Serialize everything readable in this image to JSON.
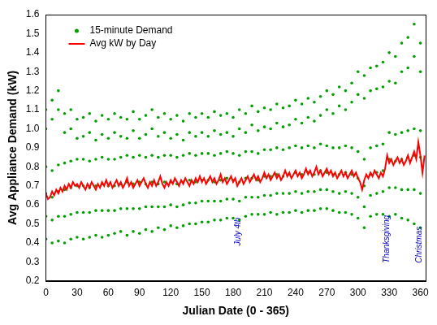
{
  "chart_data": {
    "type": "scatter",
    "x_label": "Julian Date (0 - 365)",
    "y_label": "Avg Appliance Demand (kW)",
    "xlim": [
      0,
      365
    ],
    "xticks": [
      0,
      30,
      60,
      90,
      120,
      150,
      180,
      210,
      240,
      270,
      300,
      330,
      360
    ],
    "ylim": [
      0.2,
      1.6
    ],
    "yticks": [
      0.2,
      0.3,
      0.4,
      0.5,
      0.6,
      0.7,
      0.8,
      0.9,
      {
        "value": 1,
        "label": "1.0"
      },
      1.1,
      1.2,
      1.3,
      1.4,
      1.5,
      1.6
    ],
    "grid": false,
    "legend": "upper left",
    "annotations": [
      {
        "text": "July 4th",
        "x": 185,
        "y": 0.46
      },
      {
        "text": "Thanksgiving",
        "x": 328,
        "y": 0.42
      },
      {
        "text": "Christmas",
        "x": 359,
        "y": 0.39
      }
    ],
    "series": [
      {
        "name": "15-minute Demand",
        "type": "scatter",
        "color": "#00a000",
        "marker": "circle",
        "x": [
          0,
          0,
          0,
          0,
          0,
          0,
          6,
          6,
          6,
          6,
          6,
          6,
          12,
          12,
          12,
          12,
          12,
          12,
          18,
          18,
          18,
          18,
          18,
          18,
          24,
          24,
          24,
          24,
          24,
          24,
          30,
          30,
          30,
          30,
          30,
          30,
          36,
          36,
          36,
          36,
          36,
          36,
          42,
          42,
          42,
          42,
          42,
          42,
          48,
          48,
          48,
          48,
          48,
          48,
          54,
          54,
          54,
          54,
          54,
          54,
          60,
          60,
          60,
          60,
          60,
          60,
          66,
          66,
          66,
          66,
          66,
          66,
          72,
          72,
          72,
          72,
          72,
          72,
          78,
          78,
          78,
          78,
          78,
          78,
          84,
          84,
          84,
          84,
          84,
          84,
          90,
          90,
          90,
          90,
          90,
          90,
          96,
          96,
          96,
          96,
          96,
          96,
          102,
          102,
          102,
          102,
          102,
          102,
          108,
          108,
          108,
          108,
          108,
          108,
          114,
          114,
          114,
          114,
          114,
          114,
          120,
          120,
          120,
          120,
          120,
          120,
          126,
          126,
          126,
          126,
          126,
          126,
          132,
          132,
          132,
          132,
          132,
          132,
          138,
          138,
          138,
          138,
          138,
          138,
          144,
          144,
          144,
          144,
          144,
          144,
          150,
          150,
          150,
          150,
          150,
          150,
          156,
          156,
          156,
          156,
          156,
          156,
          162,
          162,
          162,
          162,
          162,
          162,
          168,
          168,
          168,
          168,
          168,
          168,
          174,
          174,
          174,
          174,
          174,
          174,
          180,
          180,
          180,
          180,
          180,
          180,
          186,
          186,
          186,
          186,
          186,
          186,
          192,
          192,
          192,
          192,
          192,
          192,
          198,
          198,
          198,
          198,
          198,
          198,
          204,
          204,
          204,
          204,
          204,
          204,
          210,
          210,
          210,
          210,
          210,
          210,
          216,
          216,
          216,
          216,
          216,
          216,
          222,
          222,
          222,
          222,
          222,
          222,
          228,
          228,
          228,
          228,
          228,
          228,
          234,
          234,
          234,
          234,
          234,
          234,
          240,
          240,
          240,
          240,
          240,
          240,
          246,
          246,
          246,
          246,
          246,
          246,
          252,
          252,
          252,
          252,
          252,
          252,
          258,
          258,
          258,
          258,
          258,
          258,
          264,
          264,
          264,
          264,
          264,
          264,
          270,
          270,
          270,
          270,
          270,
          270,
          276,
          276,
          276,
          276,
          276,
          276,
          282,
          282,
          282,
          282,
          282,
          282,
          288,
          288,
          288,
          288,
          288,
          288,
          294,
          294,
          294,
          294,
          294,
          294,
          300,
          300,
          300,
          300,
          300,
          300,
          306,
          306,
          306,
          306,
          306,
          306,
          312,
          312,
          312,
          312,
          312,
          312,
          318,
          318,
          318,
          318,
          318,
          318,
          324,
          324,
          324,
          324,
          324,
          324,
          330,
          330,
          330,
          330,
          330,
          330,
          336,
          336,
          336,
          336,
          336,
          336,
          342,
          342,
          342,
          342,
          342,
          342,
          348,
          348,
          348,
          348,
          348,
          348,
          354,
          354,
          354,
          354,
          354,
          354,
          360,
          360,
          360,
          360,
          360,
          360
        ],
        "values": [
          0.42,
          0.54,
          0.66,
          0.8,
          1.0,
          1.1,
          0.4,
          0.52,
          0.64,
          0.78,
          1.05,
          1.15,
          0.41,
          0.54,
          0.67,
          0.81,
          1.1,
          1.2,
          0.4,
          0.54,
          0.68,
          0.82,
          0.98,
          1.08,
          0.42,
          0.55,
          0.69,
          0.83,
          1.0,
          1.1,
          0.43,
          0.56,
          0.7,
          0.84,
          0.95,
          1.05,
          0.42,
          0.56,
          0.7,
          0.84,
          0.96,
          1.06,
          0.43,
          0.56,
          0.69,
          0.83,
          0.98,
          1.08,
          0.44,
          0.57,
          0.7,
          0.84,
          0.94,
          1.04,
          0.43,
          0.57,
          0.71,
          0.85,
          0.97,
          1.07,
          0.44,
          0.57,
          0.7,
          0.84,
          0.95,
          1.05,
          0.45,
          0.57,
          0.7,
          0.84,
          0.98,
          1.08,
          0.46,
          0.58,
          0.71,
          0.85,
          0.96,
          1.06,
          0.44,
          0.58,
          0.72,
          0.86,
          0.95,
          1.05,
          0.46,
          0.58,
          0.71,
          0.85,
          0.99,
          1.09,
          0.45,
          0.58,
          0.72,
          0.86,
          0.95,
          1.05,
          0.47,
          0.59,
          0.71,
          0.85,
          0.97,
          1.07,
          0.46,
          0.59,
          0.72,
          0.86,
          1.0,
          1.1,
          0.48,
          0.59,
          0.71,
          0.85,
          0.96,
          1.06,
          0.47,
          0.59,
          0.72,
          0.86,
          0.98,
          1.08,
          0.49,
          0.6,
          0.72,
          0.86,
          0.95,
          1.05,
          0.48,
          0.59,
          0.71,
          0.85,
          0.97,
          1.07,
          0.49,
          0.6,
          0.72,
          0.86,
          0.94,
          1.04,
          0.5,
          0.61,
          0.73,
          0.87,
          0.98,
          1.08,
          0.5,
          0.61,
          0.72,
          0.86,
          0.96,
          1.06,
          0.51,
          0.62,
          0.73,
          0.87,
          0.98,
          1.08,
          0.51,
          0.62,
          0.73,
          0.87,
          0.96,
          1.06,
          0.52,
          0.62,
          0.72,
          0.86,
          0.99,
          1.09,
          0.52,
          0.62,
          0.73,
          0.87,
          0.97,
          1.07,
          0.53,
          0.63,
          0.74,
          0.88,
          0.98,
          1.08,
          0.53,
          0.63,
          0.73,
          0.87,
          0.96,
          1.06,
          0.52,
          0.62,
          0.72,
          0.86,
          1.0,
          1.1,
          0.54,
          0.64,
          0.74,
          0.88,
          0.98,
          1.08,
          0.55,
          0.64,
          0.74,
          0.88,
          1.02,
          1.12,
          0.55,
          0.64,
          0.73,
          0.87,
          0.99,
          1.09,
          0.55,
          0.65,
          0.75,
          0.89,
          1.01,
          1.11,
          0.56,
          0.65,
          0.75,
          0.89,
          1.0,
          1.1,
          0.55,
          0.66,
          0.76,
          0.9,
          1.03,
          1.13,
          0.56,
          0.66,
          0.75,
          0.89,
          1.01,
          1.11,
          0.56,
          0.66,
          0.76,
          0.9,
          1.02,
          1.12,
          0.57,
          0.67,
          0.77,
          0.91,
          1.05,
          1.15,
          0.56,
          0.66,
          0.76,
          0.9,
          1.03,
          1.13,
          0.57,
          0.67,
          0.77,
          0.91,
          1.06,
          1.16,
          0.57,
          0.67,
          0.76,
          0.9,
          1.04,
          1.14,
          0.58,
          0.68,
          0.78,
          0.92,
          1.07,
          1.17,
          0.58,
          0.68,
          0.77,
          0.91,
          1.1,
          1.2,
          0.57,
          0.67,
          0.76,
          0.9,
          1.08,
          1.18,
          0.56,
          0.66,
          0.76,
          0.9,
          1.12,
          1.22,
          0.56,
          0.67,
          0.77,
          0.91,
          1.1,
          1.2,
          0.55,
          0.66,
          0.76,
          0.9,
          1.14,
          1.24,
          0.53,
          0.64,
          0.74,
          0.88,
          1.18,
          1.3,
          0.48,
          0.59,
          0.7,
          0.84,
          1.16,
          1.28,
          0.54,
          0.65,
          0.76,
          0.9,
          1.2,
          1.32,
          0.55,
          0.66,
          0.77,
          0.91,
          1.21,
          1.33,
          0.55,
          0.67,
          0.78,
          0.92,
          1.22,
          1.35,
          0.54,
          0.69,
          0.84,
          0.98,
          1.25,
          1.4,
          0.55,
          0.69,
          0.83,
          0.97,
          1.24,
          1.38,
          0.53,
          0.68,
          0.84,
          0.98,
          1.3,
          1.45,
          0.52,
          0.68,
          0.85,
          0.99,
          1.32,
          1.48,
          0.5,
          0.68,
          0.86,
          1.0,
          1.38,
          1.55,
          0.48,
          0.66,
          0.85,
          0.99,
          1.3,
          1.45
        ]
      },
      {
        "name": "Avg kW by Day",
        "type": "line",
        "color": "#ff0000",
        "line_style": "solid",
        "x": [
          0,
          2,
          4,
          6,
          8,
          10,
          12,
          14,
          16,
          18,
          20,
          22,
          24,
          26,
          28,
          30,
          32,
          34,
          36,
          38,
          40,
          42,
          44,
          46,
          48,
          50,
          52,
          54,
          56,
          58,
          60,
          62,
          64,
          66,
          68,
          70,
          72,
          74,
          76,
          78,
          80,
          82,
          84,
          86,
          88,
          90,
          92,
          94,
          96,
          98,
          100,
          102,
          104,
          106,
          108,
          110,
          112,
          114,
          116,
          118,
          120,
          122,
          124,
          126,
          128,
          130,
          132,
          134,
          136,
          138,
          140,
          142,
          144,
          146,
          148,
          150,
          152,
          154,
          156,
          158,
          160,
          162,
          164,
          166,
          168,
          170,
          172,
          174,
          176,
          178,
          180,
          182,
          184,
          186,
          188,
          190,
          192,
          194,
          196,
          198,
          200,
          202,
          204,
          206,
          208,
          210,
          212,
          214,
          216,
          218,
          220,
          222,
          224,
          226,
          228,
          230,
          232,
          234,
          236,
          238,
          240,
          242,
          244,
          246,
          248,
          250,
          252,
          254,
          256,
          258,
          260,
          262,
          264,
          266,
          268,
          270,
          272,
          274,
          276,
          278,
          280,
          282,
          284,
          286,
          288,
          290,
          292,
          294,
          296,
          298,
          300,
          302,
          304,
          306,
          308,
          310,
          312,
          314,
          316,
          318,
          320,
          322,
          324,
          326,
          328,
          330,
          332,
          334,
          336,
          338,
          340,
          342,
          344,
          346,
          348,
          350,
          352,
          354,
          356,
          358,
          360,
          362,
          364
        ],
        "values": [
          0.66,
          0.63,
          0.64,
          0.67,
          0.65,
          0.68,
          0.66,
          0.69,
          0.67,
          0.7,
          0.68,
          0.71,
          0.69,
          0.72,
          0.7,
          0.71,
          0.69,
          0.72,
          0.7,
          0.68,
          0.71,
          0.69,
          0.72,
          0.7,
          0.68,
          0.71,
          0.69,
          0.72,
          0.7,
          0.73,
          0.7,
          0.72,
          0.69,
          0.71,
          0.73,
          0.7,
          0.72,
          0.69,
          0.71,
          0.74,
          0.7,
          0.72,
          0.69,
          0.71,
          0.73,
          0.7,
          0.72,
          0.74,
          0.71,
          0.69,
          0.72,
          0.7,
          0.73,
          0.7,
          0.72,
          0.75,
          0.71,
          0.69,
          0.72,
          0.7,
          0.73,
          0.71,
          0.74,
          0.72,
          0.7,
          0.73,
          0.71,
          0.74,
          0.72,
          0.7,
          0.73,
          0.71,
          0.74,
          0.72,
          0.75,
          0.72,
          0.74,
          0.71,
          0.73,
          0.75,
          0.72,
          0.74,
          0.71,
          0.73,
          0.76,
          0.72,
          0.74,
          0.71,
          0.73,
          0.75,
          0.72,
          0.74,
          0.7,
          0.72,
          0.74,
          0.71,
          0.73,
          0.75,
          0.72,
          0.74,
          0.76,
          0.73,
          0.75,
          0.72,
          0.74,
          0.77,
          0.74,
          0.76,
          0.73,
          0.75,
          0.77,
          0.74,
          0.76,
          0.73,
          0.75,
          0.78,
          0.75,
          0.77,
          0.74,
          0.76,
          0.78,
          0.75,
          0.77,
          0.74,
          0.76,
          0.79,
          0.76,
          0.78,
          0.75,
          0.77,
          0.8,
          0.76,
          0.78,
          0.75,
          0.77,
          0.79,
          0.76,
          0.78,
          0.75,
          0.77,
          0.74,
          0.76,
          0.78,
          0.75,
          0.77,
          0.74,
          0.76,
          0.78,
          0.75,
          0.77,
          0.74,
          0.72,
          0.68,
          0.73,
          0.76,
          0.74,
          0.77,
          0.75,
          0.78,
          0.76,
          0.74,
          0.77,
          0.75,
          0.79,
          0.86,
          0.82,
          0.84,
          0.81,
          0.83,
          0.85,
          0.82,
          0.84,
          0.81,
          0.83,
          0.86,
          0.82,
          0.85,
          0.88,
          0.84,
          0.93,
          0.86,
          0.77,
          0.86
        ]
      }
    ]
  }
}
